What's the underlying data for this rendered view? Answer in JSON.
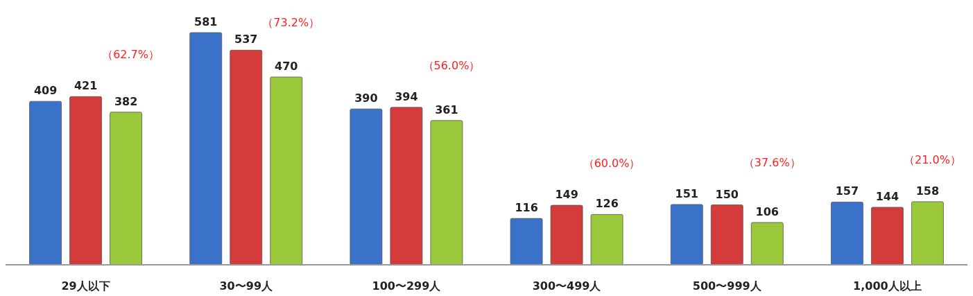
{
  "chart_data": {
    "type": "bar",
    "categories": [
      "29人以下",
      "30〜99人",
      "100〜299人",
      "300〜499人",
      "500〜999人",
      "1,000人以上"
    ],
    "series": [
      {
        "color": "#3b72c9",
        "values": [
          409,
          581,
          390,
          116,
          151,
          157
        ]
      },
      {
        "color": "#d43c3c",
        "values": [
          421,
          537,
          394,
          149,
          150,
          144
        ]
      },
      {
        "color": "#9bc73b",
        "values": [
          382,
          470,
          361,
          126,
          106,
          158
        ]
      }
    ],
    "data_labels": true,
    "annotations": [
      "（62.7%）",
      "（73.2%）",
      "（56.0%）",
      "（60.0%）",
      "（37.6%）",
      "（21.0%）"
    ]
  }
}
